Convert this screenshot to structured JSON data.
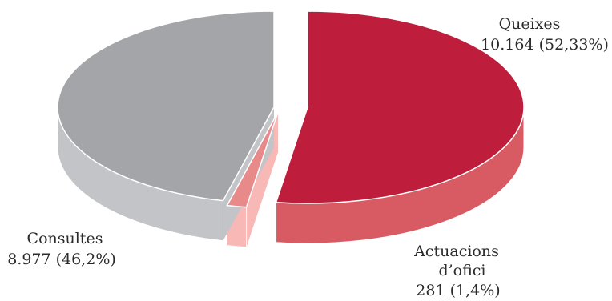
{
  "chart_data": {
    "type": "pie",
    "style": "3d-exploded",
    "title": "",
    "slices": [
      {
        "label": "Queixes",
        "value": 10164,
        "value_text": "10.164 (52,33%)",
        "percent": 52.33,
        "color": "#be1e3c",
        "side_color": "#d85a62"
      },
      {
        "label": "Actuacions d’ofici",
        "label_lines": [
          "Actuacions",
          "d’ofici"
        ],
        "value": 281,
        "value_text": "281 (1,4%)",
        "percent": 1.4,
        "color": "#e98a8a",
        "side_color": "#f7b8b6"
      },
      {
        "label": "Consultes",
        "value": 8977,
        "value_text": "8.977 (46,2%)",
        "percent": 46.2,
        "color": "#a4a5a8",
        "side_color": "#c3c4c7"
      }
    ]
  }
}
